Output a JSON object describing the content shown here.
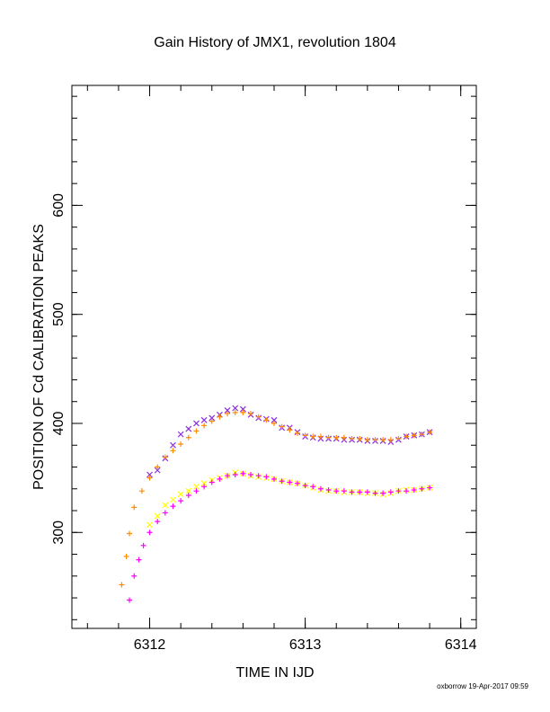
{
  "chart_data": {
    "type": "scatter",
    "title": "Gain History of JMX1, revolution 1804",
    "xlabel": "TIME IN IJD",
    "ylabel": "POSITION OF Cd CALIBRATION PEAKS",
    "xlim": [
      6311.5,
      6314.1
    ],
    "ylim": [
      212,
      710
    ],
    "x_ticks": [
      6312,
      6313,
      6314
    ],
    "y_ticks": [
      300,
      400,
      500,
      600
    ],
    "grid": false,
    "footer": "oxborrow 19-Apr-2017 09:59",
    "series": [
      {
        "marker": "x",
        "color": "#8a2be2",
        "points": [
          [
            6312.0,
            353
          ],
          [
            6312.05,
            357
          ],
          [
            6312.1,
            368
          ],
          [
            6312.15,
            380
          ],
          [
            6312.2,
            390
          ],
          [
            6312.25,
            395
          ],
          [
            6312.3,
            400
          ],
          [
            6312.35,
            403
          ],
          [
            6312.4,
            405
          ],
          [
            6312.45,
            408
          ],
          [
            6312.5,
            412
          ],
          [
            6312.55,
            414
          ],
          [
            6312.6,
            413
          ],
          [
            6312.65,
            408
          ],
          [
            6312.7,
            405
          ],
          [
            6312.75,
            404
          ],
          [
            6312.8,
            403
          ],
          [
            6312.85,
            396
          ],
          [
            6312.9,
            396
          ],
          [
            6312.95,
            392
          ],
          [
            6313.0,
            388
          ],
          [
            6313.05,
            387
          ],
          [
            6313.1,
            386
          ],
          [
            6313.15,
            386
          ],
          [
            6313.2,
            386
          ],
          [
            6313.25,
            385
          ],
          [
            6313.3,
            385
          ],
          [
            6313.35,
            385
          ],
          [
            6313.4,
            384
          ],
          [
            6313.45,
            384
          ],
          [
            6313.5,
            384
          ],
          [
            6313.55,
            383
          ],
          [
            6313.6,
            385
          ],
          [
            6313.65,
            388
          ],
          [
            6313.7,
            389
          ],
          [
            6313.75,
            390
          ],
          [
            6313.8,
            392
          ]
        ]
      },
      {
        "marker": "x",
        "color": "#ffff00",
        "points": [
          [
            6312.0,
            307
          ],
          [
            6312.05,
            315
          ],
          [
            6312.1,
            325
          ],
          [
            6312.15,
            330
          ],
          [
            6312.2,
            335
          ],
          [
            6312.25,
            338
          ],
          [
            6312.3,
            342
          ],
          [
            6312.35,
            345
          ],
          [
            6312.4,
            348
          ],
          [
            6312.45,
            350
          ],
          [
            6312.5,
            352
          ],
          [
            6312.55,
            355
          ],
          [
            6312.6,
            354
          ],
          [
            6312.65,
            352
          ],
          [
            6312.7,
            351
          ],
          [
            6312.75,
            350
          ],
          [
            6312.8,
            349
          ],
          [
            6312.85,
            347
          ],
          [
            6312.9,
            346
          ],
          [
            6312.95,
            345
          ],
          [
            6313.0,
            343
          ],
          [
            6313.05,
            341
          ],
          [
            6313.1,
            339
          ],
          [
            6313.15,
            338
          ],
          [
            6313.2,
            338
          ],
          [
            6313.25,
            337
          ],
          [
            6313.3,
            337
          ],
          [
            6313.35,
            337
          ],
          [
            6313.4,
            336
          ],
          [
            6313.45,
            336
          ],
          [
            6313.5,
            335
          ],
          [
            6313.55,
            336
          ],
          [
            6313.6,
            338
          ],
          [
            6313.65,
            339
          ],
          [
            6313.7,
            339
          ],
          [
            6313.75,
            340
          ],
          [
            6313.8,
            341
          ]
        ]
      },
      {
        "marker": "+",
        "color": "#ff8c00",
        "points": [
          [
            6311.82,
            252
          ],
          [
            6311.85,
            278
          ],
          [
            6311.87,
            299
          ],
          [
            6311.9,
            323
          ],
          [
            6311.95,
            338
          ],
          [
            6312.0,
            350
          ],
          [
            6312.05,
            360
          ],
          [
            6312.1,
            369
          ],
          [
            6312.15,
            375
          ],
          [
            6312.2,
            381
          ],
          [
            6312.25,
            387
          ],
          [
            6312.3,
            393
          ],
          [
            6312.35,
            398
          ],
          [
            6312.4,
            402
          ],
          [
            6312.45,
            406
          ],
          [
            6312.5,
            409
          ],
          [
            6312.55,
            410
          ],
          [
            6312.6,
            410
          ],
          [
            6312.65,
            409
          ],
          [
            6312.7,
            406
          ],
          [
            6312.75,
            403
          ],
          [
            6312.8,
            400
          ],
          [
            6312.85,
            397
          ],
          [
            6312.9,
            394
          ],
          [
            6312.95,
            391
          ],
          [
            6313.0,
            389
          ],
          [
            6313.05,
            388
          ],
          [
            6313.1,
            388
          ],
          [
            6313.15,
            387
          ],
          [
            6313.2,
            387
          ],
          [
            6313.25,
            387
          ],
          [
            6313.3,
            386
          ],
          [
            6313.35,
            386
          ],
          [
            6313.4,
            385
          ],
          [
            6313.45,
            385
          ],
          [
            6313.5,
            385
          ],
          [
            6313.55,
            385
          ],
          [
            6313.6,
            386
          ],
          [
            6313.65,
            388
          ],
          [
            6313.7,
            389
          ],
          [
            6313.75,
            390
          ],
          [
            6313.8,
            392
          ]
        ]
      },
      {
        "marker": "+",
        "color": "#ff00ff",
        "points": [
          [
            6311.87,
            238
          ],
          [
            6311.9,
            260
          ],
          [
            6311.93,
            275
          ],
          [
            6311.96,
            288
          ],
          [
            6312.0,
            300
          ],
          [
            6312.05,
            310
          ],
          [
            6312.1,
            318
          ],
          [
            6312.15,
            324
          ],
          [
            6312.2,
            329
          ],
          [
            6312.25,
            334
          ],
          [
            6312.3,
            338
          ],
          [
            6312.35,
            342
          ],
          [
            6312.4,
            346
          ],
          [
            6312.45,
            349
          ],
          [
            6312.5,
            352
          ],
          [
            6312.55,
            353
          ],
          [
            6312.6,
            354
          ],
          [
            6312.65,
            353
          ],
          [
            6312.7,
            352
          ],
          [
            6312.75,
            351
          ],
          [
            6312.8,
            349
          ],
          [
            6312.85,
            347
          ],
          [
            6312.9,
            346
          ],
          [
            6312.95,
            345
          ],
          [
            6313.0,
            343
          ],
          [
            6313.05,
            342
          ],
          [
            6313.1,
            340
          ],
          [
            6313.15,
            339
          ],
          [
            6313.2,
            338
          ],
          [
            6313.25,
            338
          ],
          [
            6313.3,
            337
          ],
          [
            6313.35,
            337
          ],
          [
            6313.4,
            337
          ],
          [
            6313.45,
            336
          ],
          [
            6313.5,
            336
          ],
          [
            6313.55,
            337
          ],
          [
            6313.6,
            338
          ],
          [
            6313.65,
            338
          ],
          [
            6313.7,
            339
          ],
          [
            6313.75,
            340
          ],
          [
            6313.8,
            341
          ]
        ]
      }
    ]
  }
}
